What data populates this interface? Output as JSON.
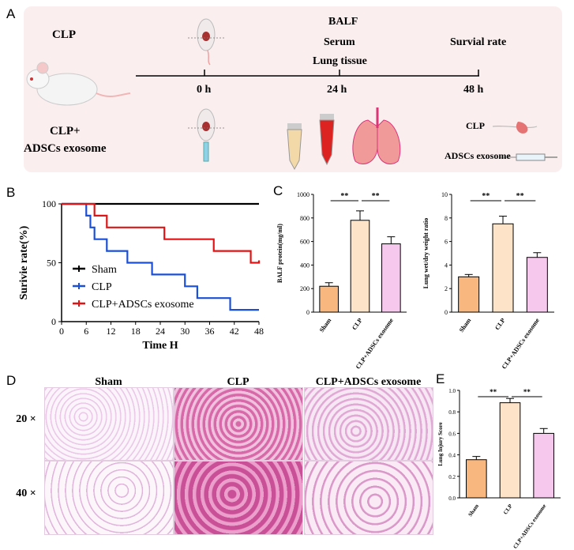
{
  "panels": {
    "a": "A",
    "b": "B",
    "c": "C",
    "d": "D",
    "e": "E"
  },
  "timeline": {
    "clp": "CLP",
    "clp_adscs_1": "CLP+",
    "clp_adscs_2": "ADSCs exosome",
    "balf": "BALF",
    "serum": "Serum",
    "lung_tissue": "Lung tissue",
    "survival_rate": "Survial rate",
    "t0": "0 h",
    "t24": "24 h",
    "t48": "48 h",
    "legend_clp": "CLP",
    "legend_exo": "ADSCs exosome"
  },
  "histology": {
    "cols": [
      "Sham",
      "CLP",
      "CLP+ADSCs exosome"
    ],
    "rows": [
      "20 ×",
      "40 ×"
    ]
  },
  "chart_data": [
    {
      "id": "survival",
      "type": "line",
      "step": true,
      "xlabel": "Time H",
      "ylabel": "Surivie rate(%)",
      "xlim": [
        0,
        48
      ],
      "ylim": [
        0,
        100
      ],
      "xticks": [
        0,
        6,
        12,
        18,
        24,
        30,
        36,
        42,
        48
      ],
      "yticks": [
        0,
        50,
        100
      ],
      "legend_position": "bottom-left",
      "series": [
        {
          "name": "Sham",
          "color": "#000000",
          "points": [
            [
              0,
              100
            ],
            [
              48,
              100
            ]
          ]
        },
        {
          "name": "CLP",
          "color": "#1a4fd6",
          "points": [
            [
              0,
              100
            ],
            [
              6,
              100
            ],
            [
              6,
              90
            ],
            [
              7,
              90
            ],
            [
              7,
              80
            ],
            [
              8,
              80
            ],
            [
              8,
              70
            ],
            [
              11,
              70
            ],
            [
              11,
              60
            ],
            [
              16,
              60
            ],
            [
              16,
              50
            ],
            [
              22,
              50
            ],
            [
              22,
              40
            ],
            [
              30,
              40
            ],
            [
              30,
              30
            ],
            [
              33,
              30
            ],
            [
              33,
              20
            ],
            [
              41,
              20
            ],
            [
              41,
              10
            ],
            [
              48,
              10
            ]
          ]
        },
        {
          "name": "CLP+ADSCs exosome",
          "color": "#e01414",
          "points": [
            [
              0,
              100
            ],
            [
              8,
              100
            ],
            [
              8,
              90
            ],
            [
              11,
              90
            ],
            [
              11,
              80
            ],
            [
              25,
              80
            ],
            [
              25,
              70
            ],
            [
              37,
              70
            ],
            [
              37,
              60
            ],
            [
              46,
              60
            ],
            [
              46,
              50
            ],
            [
              48,
              50
            ],
            [
              48,
              52
            ]
          ]
        }
      ]
    },
    {
      "id": "balf",
      "type": "bar",
      "ylabel": "BALF protein(mg/ml)",
      "ylim": [
        0,
        1000
      ],
      "yticks": [
        0,
        200,
        400,
        600,
        800,
        1000
      ],
      "categories": [
        "Sham",
        "CLP",
        "CLP+ADSCs exosome"
      ],
      "values": [
        220,
        780,
        580
      ],
      "errors": [
        30,
        80,
        60
      ],
      "colors": [
        "#f7b77e",
        "#fde3c8",
        "#f7c8ee"
      ],
      "significance": [
        "**",
        "**"
      ]
    },
    {
      "id": "wetdry",
      "type": "bar",
      "ylabel": "Lung wet/dry weight ratio",
      "ylim": [
        0,
        10
      ],
      "yticks": [
        0,
        2,
        4,
        6,
        8,
        10
      ],
      "categories": [
        "Sham",
        "CLP",
        "CLP+ADSCs exosome"
      ],
      "values": [
        3.0,
        7.5,
        4.65
      ],
      "errors": [
        0.2,
        0.65,
        0.4
      ],
      "colors": [
        "#f7b77e",
        "#fde3c8",
        "#f7c8ee"
      ],
      "significance": [
        "**",
        "**"
      ]
    },
    {
      "id": "injury",
      "type": "bar",
      "ylabel": "Lung Injury Score",
      "ylim": [
        0,
        1.0
      ],
      "yticks": [
        0.0,
        0.2,
        0.4,
        0.6,
        0.8,
        1.0
      ],
      "categories": [
        "Sham",
        "CLP",
        "CLP+ADSCs exosome"
      ],
      "values": [
        0.355,
        0.885,
        0.6
      ],
      "errors": [
        0.03,
        0.04,
        0.045
      ],
      "colors": [
        "#f7b77e",
        "#fde3c8",
        "#f7c8ee"
      ],
      "significance": [
        "**",
        "**"
      ]
    }
  ]
}
